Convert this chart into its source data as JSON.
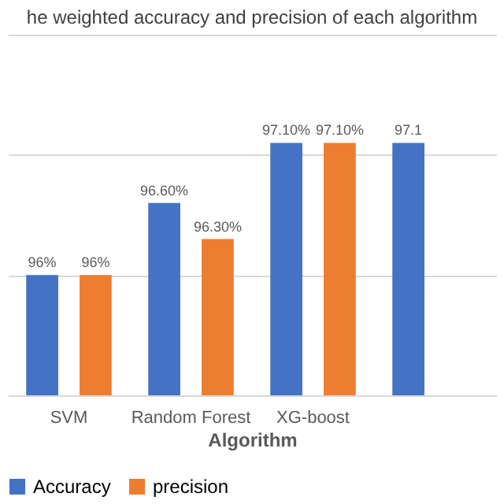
{
  "chart_data": {
    "type": "bar",
    "title": "he weighted accuracy and precision of each algorithm",
    "xlabel": "Algorithm",
    "categories": [
      "SVM",
      "Random Forest",
      "XG-boost",
      null
    ],
    "series": [
      {
        "name": "Accuracy",
        "color": "#4472c4",
        "values": [
          96,
          96.6,
          97.1,
          97.1
        ],
        "value_labels": [
          "96%",
          "96.60%",
          "97.10%",
          "97.1"
        ]
      },
      {
        "name": "precision",
        "color": "#ed7d31",
        "values": [
          96,
          96.3,
          97.1,
          null
        ],
        "value_labels": [
          "96%",
          "96.30%",
          "97.10%",
          null
        ]
      }
    ],
    "ylim": [
      95,
      98
    ],
    "yticks": [
      {
        "value": 95,
        "label": null
      },
      {
        "value": 96,
        "label": null
      },
      {
        "value": 97,
        "label": null
      },
      {
        "value": 98,
        "label": null
      }
    ],
    "grid": "y",
    "legend": "bottom",
    "tick_labels": "x"
  }
}
